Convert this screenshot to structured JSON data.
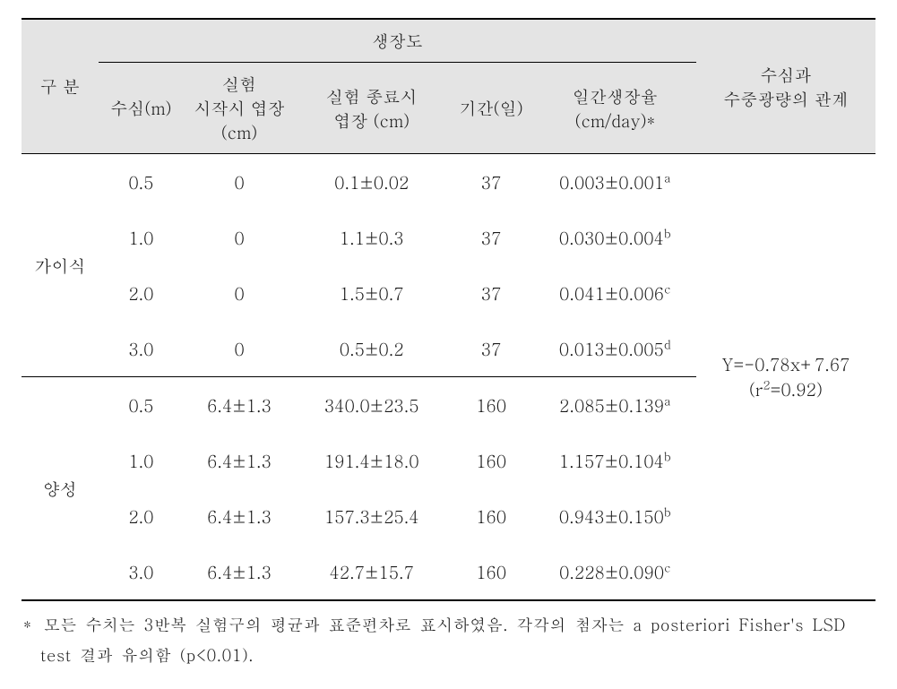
{
  "colors": {
    "header_bg": "#e4e4e4",
    "text": "#1a1a1a",
    "rule": "#000000",
    "background": "#ffffff"
  },
  "header": {
    "group_growth": "생장도",
    "gubun": "구 분",
    "depth": "수심(m)",
    "start_len": "실험\n시작시 엽장\n(cm)",
    "start_len_l1": "실험",
    "start_len_l2": "시작시 엽장",
    "start_len_l3": "(cm)",
    "end_len_l1": "실험 종료시",
    "end_len_l2": "엽장 (cm)",
    "period": "기간(일)",
    "rate_l1": "일간생장율",
    "rate_l2": "(cm/day)*",
    "relation_l1": "수심과",
    "relation_l2": "수중광량의 관계"
  },
  "groups": [
    {
      "name": "가이식",
      "rows": [
        {
          "depth": "0.5",
          "start": "0",
          "end": "0.1±0.02",
          "period": "37",
          "rate": "0.003±0.001",
          "sup": "a"
        },
        {
          "depth": "1.0",
          "start": "0",
          "end": "1.1±0.3",
          "period": "37",
          "rate": "0.030±0.004",
          "sup": "b"
        },
        {
          "depth": "2.0",
          "start": "0",
          "end": "1.5±0.7",
          "period": "37",
          "rate": "0.041±0.006",
          "sup": "c"
        },
        {
          "depth": "3.0",
          "start": "0",
          "end": "0.5±0.2",
          "period": "37",
          "rate": "0.013±0.005",
          "sup": "d"
        }
      ]
    },
    {
      "name": "양성",
      "rows": [
        {
          "depth": "0.5",
          "start": "6.4±1.3",
          "end": "340.0±23.5",
          "period": "160",
          "rate": "2.085±0.139",
          "sup": "a"
        },
        {
          "depth": "1.0",
          "start": "6.4±1.3",
          "end": "191.4±18.0",
          "period": "160",
          "rate": "1.157±0.104",
          "sup": "b"
        },
        {
          "depth": "2.0",
          "start": "6.4±1.3",
          "end": "157.3±25.4",
          "period": "160",
          "rate": "0.943±0.150",
          "sup": "b"
        },
        {
          "depth": "3.0",
          "start": "6.4±1.3",
          "end": "42.7±15.7",
          "period": "160",
          "rate": "0.228±0.090",
          "sup": "c"
        }
      ]
    }
  ],
  "relation": {
    "eq": "Y=-0.78x+7.67",
    "r2_label_pre": "(r",
    "r2_sup": "2",
    "r2_label_post": "=0.92)"
  },
  "footnote": {
    "ast": "*",
    "line1": "모든 수치는 3반복 실험구의 평균과 표준편차로 표시하였음. 각각의 첨자는 a posteriori Fisher's LSD",
    "line2": "test 결과 유의함 (p<0.01)."
  }
}
